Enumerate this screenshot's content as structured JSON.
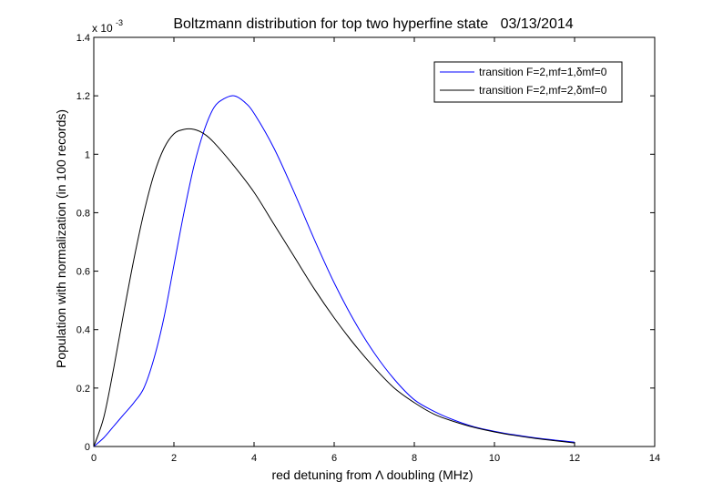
{
  "chart_data": {
    "type": "line",
    "title": "Boltzmann distribution for top two hyperfine state   03/13/2014",
    "xlabel": "red detuning from Λ doubling (MHz)",
    "ylabel": "Population with normalization (in 100 records)",
    "xlim": [
      0,
      14
    ],
    "ylim": [
      0,
      1.4
    ],
    "y_multiplier": {
      "base": "x 10",
      "exponent": "-3"
    },
    "xticks": [
      0,
      2,
      4,
      6,
      8,
      10,
      12,
      14
    ],
    "xtick_labels": [
      "0",
      "2",
      "4",
      "6",
      "8",
      "10",
      "12",
      "14"
    ],
    "yticks": [
      0,
      0.2,
      0.4,
      0.6,
      0.8,
      1.0,
      1.2,
      1.4
    ],
    "ytick_labels": [
      "0",
      "0.2",
      "0.4",
      "0.6",
      "0.8",
      "1",
      "1.2",
      "1.4"
    ],
    "grid": false,
    "legend_position": "top-right",
    "series": [
      {
        "name": "transition F=2,mf=1,δmf=0",
        "color": "#0000ff",
        "x": [
          0,
          0.25,
          0.5,
          0.75,
          1.0,
          1.25,
          1.5,
          1.75,
          2.0,
          2.25,
          2.5,
          2.75,
          3.0,
          3.25,
          3.5,
          3.75,
          4.0,
          4.5,
          5.0,
          5.5,
          6.0,
          6.5,
          7.0,
          7.5,
          8.0,
          8.5,
          9.0,
          9.5,
          10.0,
          10.5,
          11.0,
          11.5,
          12.0
        ],
        "y": [
          0,
          0.03,
          0.07,
          0.11,
          0.15,
          0.2,
          0.3,
          0.44,
          0.62,
          0.8,
          0.96,
          1.08,
          1.16,
          1.19,
          1.2,
          1.18,
          1.14,
          1.02,
          0.87,
          0.71,
          0.56,
          0.43,
          0.32,
          0.23,
          0.16,
          0.12,
          0.09,
          0.067,
          0.052,
          0.04,
          0.03,
          0.022,
          0.015
        ]
      },
      {
        "name": "transition F=2,mf=2,δmf=0",
        "color": "#000000",
        "x": [
          0,
          0.25,
          0.5,
          0.75,
          1.0,
          1.25,
          1.5,
          1.75,
          2.0,
          2.25,
          2.5,
          2.75,
          3.0,
          3.5,
          4.0,
          4.5,
          5.0,
          5.5,
          6.0,
          6.5,
          7.0,
          7.5,
          8.0,
          8.5,
          9.0,
          9.5,
          10.0,
          10.5,
          11.0,
          11.5,
          12.0
        ],
        "y": [
          0,
          0.1,
          0.27,
          0.46,
          0.64,
          0.8,
          0.93,
          1.02,
          1.07,
          1.085,
          1.085,
          1.07,
          1.04,
          0.96,
          0.87,
          0.76,
          0.65,
          0.54,
          0.44,
          0.35,
          0.27,
          0.2,
          0.15,
          0.11,
          0.085,
          0.065,
          0.05,
          0.038,
          0.028,
          0.02,
          0.012
        ]
      }
    ]
  }
}
